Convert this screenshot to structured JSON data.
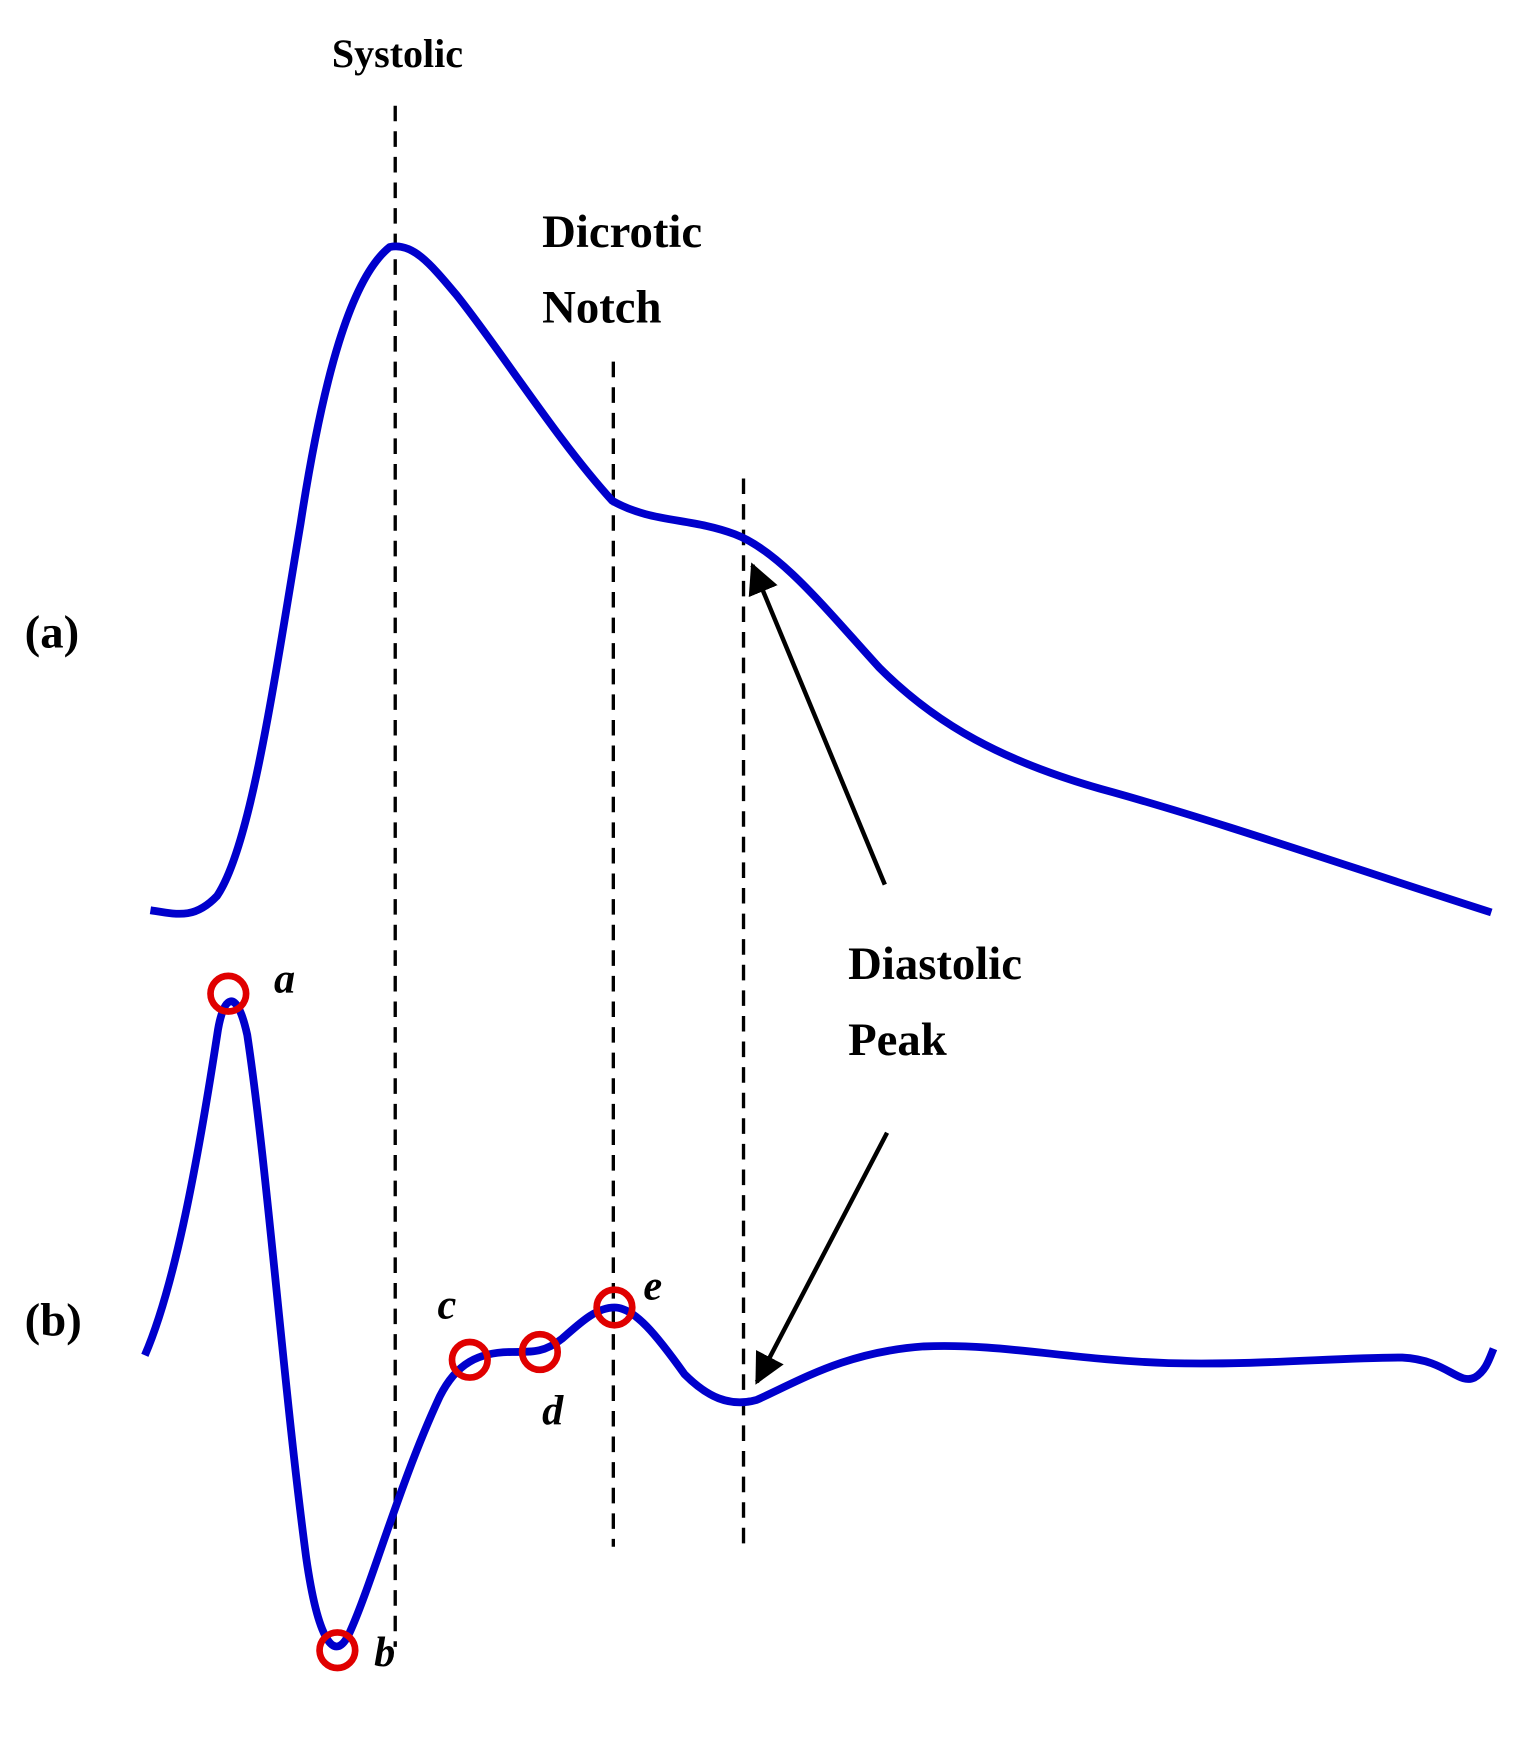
{
  "labels": {
    "systolic": "Systolic",
    "dicrotic_notch": [
      "Dicrotic",
      "Notch"
    ],
    "panel_a": "(a)",
    "panel_b": "(b)",
    "diastolic_peak": [
      "Diastolic",
      "Peak"
    ]
  },
  "points": [
    "a",
    "b",
    "c",
    "d",
    "e"
  ]
}
